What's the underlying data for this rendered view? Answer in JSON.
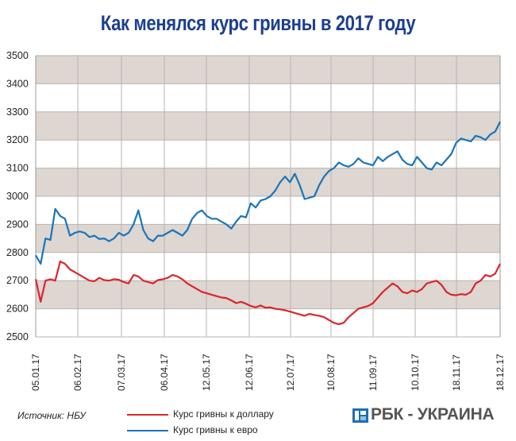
{
  "chart_data": {
    "type": "line",
    "title": "Как менялся курс гривны в 2017 году",
    "ylim": [
      2500,
      3500
    ],
    "yticks": [
      "3500",
      "3400",
      "3300",
      "3200",
      "3100",
      "3000",
      "2900",
      "2800",
      "2700",
      "2600",
      "2500"
    ],
    "xticks": [
      "05.01.17",
      "06.02.17",
      "07.03.17",
      "06.04.17",
      "12.05.17",
      "12.06.17",
      "12.07.17",
      "10.08.17",
      "11.09.17",
      "10.10.17",
      "18.11.17",
      "18.12.17"
    ],
    "grid": true,
    "banded_background": true,
    "series": [
      {
        "name": "Курс гривны к доллару",
        "color": "#d9262b",
        "values": [
          2705,
          2625,
          2700,
          2705,
          2700,
          2768,
          2760,
          2740,
          2730,
          2720,
          2710,
          2700,
          2698,
          2710,
          2702,
          2700,
          2705,
          2703,
          2695,
          2690,
          2720,
          2715,
          2700,
          2695,
          2690,
          2702,
          2705,
          2710,
          2720,
          2715,
          2705,
          2690,
          2680,
          2670,
          2660,
          2655,
          2650,
          2645,
          2640,
          2638,
          2630,
          2620,
          2625,
          2618,
          2610,
          2605,
          2612,
          2604,
          2605,
          2600,
          2598,
          2595,
          2590,
          2585,
          2580,
          2575,
          2582,
          2578,
          2575,
          2570,
          2560,
          2550,
          2545,
          2550,
          2570,
          2585,
          2600,
          2605,
          2610,
          2620,
          2640,
          2660,
          2675,
          2690,
          2680,
          2660,
          2655,
          2665,
          2660,
          2670,
          2690,
          2695,
          2700,
          2685,
          2660,
          2650,
          2648,
          2652,
          2650,
          2660,
          2690,
          2700,
          2720,
          2715,
          2725,
          2760
        ]
      },
      {
        "name": "Курс гривны к евро",
        "color": "#1a75b9",
        "values": [
          2790,
          2760,
          2850,
          2845,
          2955,
          2930,
          2920,
          2860,
          2870,
          2875,
          2870,
          2855,
          2860,
          2848,
          2850,
          2840,
          2850,
          2870,
          2860,
          2870,
          2900,
          2950,
          2880,
          2850,
          2840,
          2860,
          2860,
          2870,
          2880,
          2870,
          2860,
          2880,
          2920,
          2940,
          2950,
          2930,
          2920,
          2920,
          2910,
          2900,
          2885,
          2910,
          2930,
          2925,
          2975,
          2960,
          2985,
          2990,
          3000,
          3020,
          3050,
          3070,
          3050,
          3080,
          3040,
          2990,
          2995,
          3000,
          3040,
          3070,
          3090,
          3100,
          3120,
          3110,
          3105,
          3115,
          3135,
          3120,
          3115,
          3110,
          3140,
          3125,
          3140,
          3150,
          3160,
          3130,
          3115,
          3110,
          3140,
          3120,
          3100,
          3095,
          3120,
          3110,
          3130,
          3150,
          3190,
          3205,
          3200,
          3195,
          3215,
          3210,
          3200,
          3220,
          3230,
          3265
        ]
      }
    ]
  },
  "footer": {
    "source": "Источник: НБУ",
    "legend": [
      "Курс гривны к доллару",
      "Курс гривны к евро"
    ],
    "brand": "РБК - УКРАИНА"
  }
}
